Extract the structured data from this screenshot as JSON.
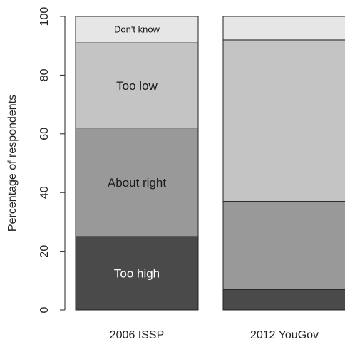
{
  "chart_data": {
    "type": "bar",
    "stacked": true,
    "percent_stacked": true,
    "ylabel": "Percentage of respondents",
    "ylim": [
      0,
      100
    ],
    "yticks": [
      0,
      20,
      40,
      60,
      80,
      100
    ],
    "grid": false,
    "categories": [
      "2006 ISSP",
      "2012 YouGov"
    ],
    "series": [
      {
        "name": "Too high",
        "values": [
          25,
          7
        ],
        "color": "#4a4a4a",
        "label_color": "#ffffff",
        "show_label": [
          true,
          false
        ]
      },
      {
        "name": "About right",
        "values": [
          37,
          30
        ],
        "color": "#999999",
        "label_color": "#1a1a1a",
        "show_label": [
          true,
          false
        ]
      },
      {
        "name": "Too low",
        "values": [
          29,
          55
        ],
        "color": "#c4c4c4",
        "label_color": "#1a1a1a",
        "show_label": [
          true,
          false
        ]
      },
      {
        "name": "Don't know",
        "values": [
          9,
          8
        ],
        "color": "#e6e6e6",
        "label_color": "#1a1a1a",
        "show_label": [
          true,
          false
        ]
      }
    ]
  }
}
